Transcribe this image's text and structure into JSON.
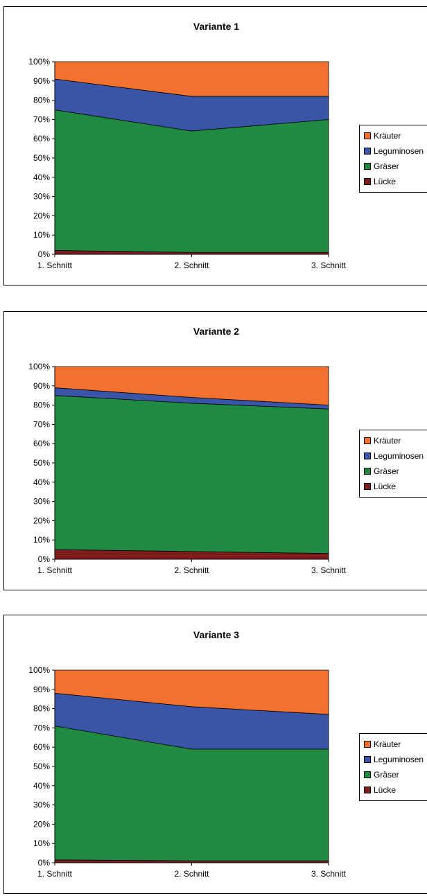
{
  "colors": {
    "Lücke": "#7f1d1d",
    "Gräser": "#1f8a42",
    "Leguminosen": "#3a55a8",
    "Kräuter": "#f2712e"
  },
  "legend_order": [
    "Kräuter",
    "Leguminosen",
    "Gräser",
    "Lücke"
  ],
  "chart_data": [
    {
      "type": "area",
      "stacked": "percent",
      "title": "Variante 1",
      "categories": [
        "1. Schnitt",
        "2. Schnitt",
        "3. Schnitt"
      ],
      "y_ticks": [
        "0%",
        "10%",
        "20%",
        "30%",
        "40%",
        "50%",
        "60%",
        "70%",
        "80%",
        "90%",
        "100%"
      ],
      "ylim": [
        0,
        100
      ],
      "legend_position": "right",
      "series": [
        {
          "name": "Lücke",
          "values": [
            2,
            1,
            1
          ]
        },
        {
          "name": "Gräser",
          "values": [
            73,
            63,
            69
          ]
        },
        {
          "name": "Leguminosen",
          "values": [
            16,
            18,
            12
          ]
        },
        {
          "name": "Kräuter",
          "values": [
            9,
            18,
            18
          ]
        }
      ]
    },
    {
      "type": "area",
      "stacked": "percent",
      "title": "Variante 2",
      "categories": [
        "1. Schnitt",
        "2. Schnitt",
        "3. Schnitt"
      ],
      "y_ticks": [
        "0%",
        "10%",
        "20%",
        "30%",
        "40%",
        "50%",
        "60%",
        "70%",
        "80%",
        "90%",
        "100%"
      ],
      "ylim": [
        0,
        100
      ],
      "legend_position": "right",
      "series": [
        {
          "name": "Lücke",
          "values": [
            5,
            4,
            3
          ]
        },
        {
          "name": "Gräser",
          "values": [
            80,
            77,
            75
          ]
        },
        {
          "name": "Leguminosen",
          "values": [
            4,
            3,
            2
          ]
        },
        {
          "name": "Kräuter",
          "values": [
            11,
            16,
            20
          ]
        }
      ]
    },
    {
      "type": "area",
      "stacked": "percent",
      "title": "Variante 3",
      "categories": [
        "1. Schnitt",
        "2. Schnitt",
        "3. Schnitt"
      ],
      "y_ticks": [
        "0%",
        "10%",
        "20%",
        "30%",
        "40%",
        "50%",
        "60%",
        "70%",
        "80%",
        "90%",
        "100%"
      ],
      "ylim": [
        0,
        100
      ],
      "legend_position": "right",
      "series": [
        {
          "name": "Lücke",
          "values": [
            1.5,
            1,
            1
          ]
        },
        {
          "name": "Gräser",
          "values": [
            69.5,
            58,
            58
          ]
        },
        {
          "name": "Leguminosen",
          "values": [
            17,
            22,
            18
          ]
        },
        {
          "name": "Kräuter",
          "values": [
            12,
            19,
            23
          ]
        }
      ]
    }
  ]
}
